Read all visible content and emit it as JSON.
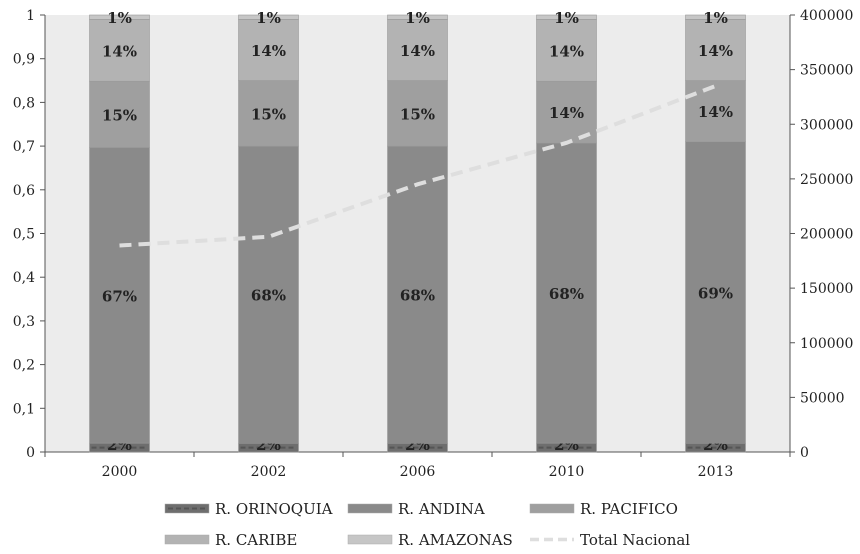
{
  "chart_data": {
    "type": "bar",
    "stacked": true,
    "categories": [
      "2000",
      "2002",
      "2006",
      "2010",
      "2013"
    ],
    "series": [
      {
        "name": "R. ORINOQUIA",
        "values": [
          0.02,
          0.02,
          0.02,
          0.02,
          0.02
        ],
        "labels": [
          "2%",
          "2%",
          "2%",
          "2%",
          "2%"
        ],
        "color": "#6e6e6e"
      },
      {
        "name": "R. ANDINA",
        "values": [
          0.67,
          0.68,
          0.68,
          0.68,
          0.69
        ],
        "labels": [
          "67%",
          "68%",
          "68%",
          "68%",
          "69%"
        ],
        "color": "#8a8a8a"
      },
      {
        "name": "R. PACIFICO",
        "values": [
          0.15,
          0.15,
          0.15,
          0.14,
          0.14
        ],
        "labels": [
          "15%",
          "15%",
          "15%",
          "14%",
          "14%"
        ],
        "color": "#9f9f9f"
      },
      {
        "name": "R. CARIBE",
        "values": [
          0.14,
          0.14,
          0.14,
          0.14,
          0.14
        ],
        "labels": [
          "14%",
          "14%",
          "14%",
          "14%",
          "14%"
        ],
        "color": "#b3b3b3"
      },
      {
        "name": "R. AMAZONAS",
        "values": [
          0.01,
          0.01,
          0.01,
          0.01,
          0.01
        ],
        "labels": [
          "1%",
          "1%",
          "1%",
          "1%",
          "1%"
        ],
        "color": "#c6c6c6"
      }
    ],
    "line_series": {
      "name": "Total Nacional",
      "axis": "right",
      "values": [
        189000,
        197000,
        245000,
        283000,
        335000
      ],
      "color": "#dedede",
      "style": "dashed"
    },
    "left_axis": {
      "ylim": [
        0,
        1
      ],
      "ticks": [
        0,
        0.1,
        0.2,
        0.3,
        0.4,
        0.5,
        0.6,
        0.7,
        0.8,
        0.9,
        1
      ],
      "tick_labels": [
        "0",
        "0,1",
        "0,2",
        "0,3",
        "0,4",
        "0,5",
        "0,6",
        "0,7",
        "0,8",
        "0,9",
        "1"
      ]
    },
    "right_axis": {
      "ylim": [
        0,
        400000
      ],
      "ticks": [
        0,
        50000,
        100000,
        150000,
        200000,
        250000,
        300000,
        350000,
        400000
      ],
      "tick_labels": [
        "0",
        "50000",
        "100000",
        "150000",
        "200000",
        "250000",
        "300000",
        "350000",
        "400000"
      ]
    },
    "title": "",
    "xlabel": "",
    "ylabel": "",
    "legend_position": "bottom",
    "grid": false,
    "plot_background": "#ececec"
  }
}
